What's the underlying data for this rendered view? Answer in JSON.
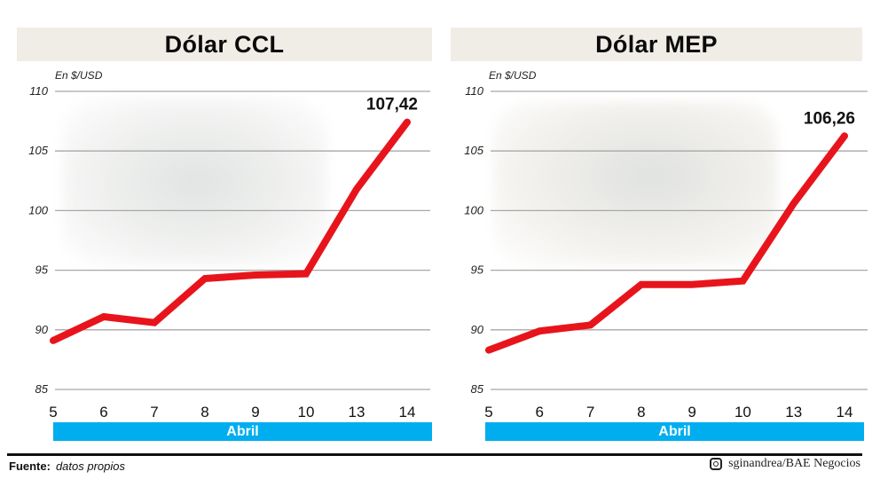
{
  "charts": [
    {
      "title": "Dólar CCL",
      "unit_label": "En $/USD",
      "end_label": "107,42",
      "month_label": "Abril"
    },
    {
      "title": "Dólar MEP",
      "unit_label": "En $/USD",
      "end_label": "106,26",
      "month_label": "Abril"
    }
  ],
  "footer": {
    "source_label": "Fuente:",
    "source_value": "datos propios",
    "credit": "sginandrea/BAE Negocios",
    "credit_icon": "instagram-icon"
  },
  "colors": {
    "line": "#e8141c",
    "month_bar": "#00aeef",
    "title_bar": "#f0ede6",
    "grid": "#a8a8a8"
  },
  "chart_data": [
    {
      "type": "line",
      "title": "Dólar CCL",
      "ylabel": "En $/USD",
      "xlabel": "Abril",
      "categories": [
        "5",
        "6",
        "7",
        "8",
        "9",
        "10",
        "13",
        "14"
      ],
      "values": [
        89.1,
        91.1,
        90.6,
        94.3,
        94.6,
        94.7,
        101.8,
        107.42
      ],
      "yticks": [
        85,
        90,
        95,
        100,
        105,
        110
      ],
      "ylim": [
        85,
        110
      ],
      "grid": true,
      "annotations": [
        {
          "x": "14",
          "text": "107,42"
        }
      ]
    },
    {
      "type": "line",
      "title": "Dólar MEP",
      "ylabel": "En $/USD",
      "xlabel": "Abril",
      "categories": [
        "5",
        "6",
        "7",
        "8",
        "9",
        "10",
        "13",
        "14"
      ],
      "values": [
        88.3,
        89.9,
        90.4,
        93.8,
        93.8,
        94.1,
        100.6,
        106.26
      ],
      "yticks": [
        85,
        90,
        95,
        100,
        105,
        110
      ],
      "ylim": [
        85,
        110
      ],
      "grid": true,
      "annotations": [
        {
          "x": "14",
          "text": "106,26"
        }
      ]
    }
  ]
}
